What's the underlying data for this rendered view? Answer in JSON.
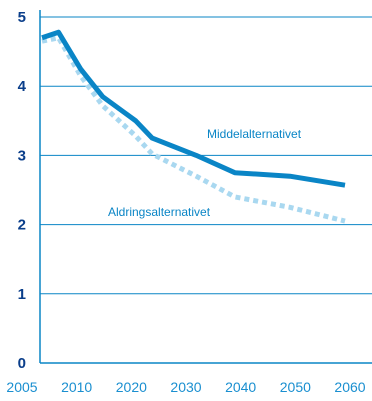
{
  "colors": {
    "axis": "#0a85c6",
    "grid": "#0a85c6",
    "ytick_text": "#0a3e8a",
    "xtick_text": "#1a8fd0",
    "series_solid": "#0a85c6",
    "series_dotted": "#a9d8f0",
    "label_text": "#0a85c6"
  },
  "chart_data": {
    "type": "line",
    "x_ticks": [
      "2005",
      "2010",
      "2020",
      "2030",
      "2040",
      "2050",
      "2060"
    ],
    "ylim": [
      0,
      5
    ],
    "y_ticks": [
      0,
      1,
      2,
      3,
      4,
      5
    ],
    "grid": true,
    "series": [
      {
        "name": "Middelalternativet",
        "style": "solid",
        "points": [
          {
            "x": 2005,
            "y": 4.7
          },
          {
            "x": 2008,
            "y": 4.78
          },
          {
            "x": 2012,
            "y": 4.25
          },
          {
            "x": 2016,
            "y": 3.85
          },
          {
            "x": 2022,
            "y": 3.5
          },
          {
            "x": 2025,
            "y": 3.25
          },
          {
            "x": 2033,
            "y": 3.0
          },
          {
            "x": 2040,
            "y": 2.75
          },
          {
            "x": 2050,
            "y": 2.7
          },
          {
            "x": 2060,
            "y": 2.57
          }
        ]
      },
      {
        "name": "Aldringsalternativet",
        "style": "dotted",
        "points": [
          {
            "x": 2005,
            "y": 4.65
          },
          {
            "x": 2008,
            "y": 4.7
          },
          {
            "x": 2012,
            "y": 4.15
          },
          {
            "x": 2016,
            "y": 3.72
          },
          {
            "x": 2022,
            "y": 3.28
          },
          {
            "x": 2025,
            "y": 3.02
          },
          {
            "x": 2033,
            "y": 2.7
          },
          {
            "x": 2040,
            "y": 2.4
          },
          {
            "x": 2050,
            "y": 2.25
          },
          {
            "x": 2060,
            "y": 2.05
          }
        ]
      }
    ],
    "annotations": [
      {
        "text": "Middelalternativet",
        "series": "Middelalternativet"
      },
      {
        "text": "Aldringsalternativet",
        "series": "Aldringsalternativet"
      }
    ]
  }
}
